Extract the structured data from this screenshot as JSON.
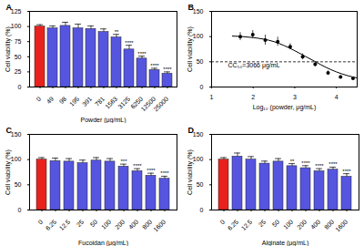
{
  "chart_data": [
    {
      "type": "bar",
      "title": "A",
      "x_label": "Powder (μg/mL)",
      "y_label": "Cell viability (%)",
      "categories": [
        "0",
        "49",
        "98",
        "195",
        "391",
        "781",
        "1563",
        "3125",
        "6250",
        "12500",
        "25000"
      ],
      "values": [
        100,
        97,
        101,
        97,
        96,
        91,
        82,
        62,
        47,
        28,
        22
      ],
      "errors": [
        3,
        4,
        6,
        7,
        5,
        5,
        5,
        7,
        4,
        3,
        3
      ],
      "significance": [
        null,
        null,
        null,
        null,
        null,
        null,
        "**",
        "****",
        "****",
        "****",
        "****"
      ],
      "colors": [
        "#e8211d",
        "#5555e0",
        "#5555e0",
        "#5555e0",
        "#5555e0",
        "#5555e0",
        "#5555e0",
        "#5555e0",
        "#5555e0",
        "#5555e0",
        "#5555e0"
      ],
      "ylim": [
        0,
        125
      ],
      "yticks": [
        0,
        25,
        50,
        75,
        100,
        125
      ]
    },
    {
      "type": "scatter",
      "title": "B",
      "x_label": "Log₁₀ (powder, μg/mL)",
      "y_label": "Cell viability (%)",
      "series": [
        {
          "type": "scatter",
          "marker": "circle",
          "color": "#000000",
          "x": [
            1.69,
            1.99,
            2.29,
            2.59,
            2.89,
            3.19,
            3.49,
            3.8,
            4.1,
            4.4
          ],
          "values": [
            100,
            104,
            93,
            90,
            80,
            60,
            45,
            28,
            20,
            17
          ],
          "errors": [
            8,
            8,
            10,
            9,
            6,
            6,
            5,
            4,
            3,
            2
          ]
        },
        {
          "type": "line",
          "color": "#000000",
          "x": [
            1.5,
            1.75,
            2,
            2.25,
            2.5,
            2.75,
            3,
            3.25,
            3.5,
            3.75,
            4,
            4.25,
            4.5
          ],
          "values": [
            101,
            100,
            98,
            95,
            90,
            82,
            72,
            61,
            50,
            39,
            30,
            23,
            18
          ]
        }
      ],
      "reference_line": 50,
      "line_style": "dashed",
      "annotation": "CC₅₀=3066 μg/mL",
      "xlim": [
        1,
        4.5
      ],
      "xticks": [
        1,
        2,
        3,
        4
      ],
      "ylim": [
        0,
        150
      ],
      "yticks": [
        0,
        50,
        100,
        150
      ]
    },
    {
      "type": "bar",
      "title": "C",
      "x_label": "Fucoidan (μg/mL)",
      "y_label": "Cell viability (%)",
      "categories": [
        "0",
        "6.25",
        "12.5",
        "25",
        "50",
        "100",
        "200",
        "400",
        "800",
        "1600"
      ],
      "values": [
        100,
        97,
        96,
        93,
        98,
        96,
        86,
        77,
        68,
        62
      ],
      "errors": [
        4,
        6,
        6,
        6,
        6,
        6,
        5,
        5,
        5,
        5
      ],
      "significance": [
        null,
        null,
        null,
        null,
        null,
        null,
        "***",
        "****",
        "****",
        "****"
      ],
      "colors": [
        "#e8211d",
        "#5555e0",
        "#5555e0",
        "#5555e0",
        "#5555e0",
        "#5555e0",
        "#5555e0",
        "#5555e0",
        "#5555e0",
        "#5555e0"
      ],
      "ylim": [
        0,
        150
      ],
      "yticks": [
        0,
        50,
        100,
        150
      ]
    },
    {
      "type": "bar",
      "title": "D",
      "x_label": "Alginate (μg/mL)",
      "y_label": "Cell viability (%)",
      "categories": [
        "0",
        "6.25",
        "12.5",
        "25",
        "50",
        "100",
        "200",
        "400",
        "800",
        "1600"
      ],
      "values": [
        100,
        106,
        100,
        92,
        96,
        87,
        83,
        77,
        80,
        66
      ],
      "errors": [
        4,
        7,
        6,
        5,
        6,
        5,
        5,
        5,
        5,
        6
      ],
      "significance": [
        null,
        null,
        null,
        null,
        null,
        "**",
        "****",
        "****",
        "****",
        "****"
      ],
      "colors": [
        "#e8211d",
        "#5555e0",
        "#5555e0",
        "#5555e0",
        "#5555e0",
        "#5555e0",
        "#5555e0",
        "#5555e0",
        "#5555e0",
        "#5555e0"
      ],
      "ylim": [
        0,
        150
      ],
      "yticks": [
        0,
        50,
        100,
        150
      ]
    }
  ]
}
